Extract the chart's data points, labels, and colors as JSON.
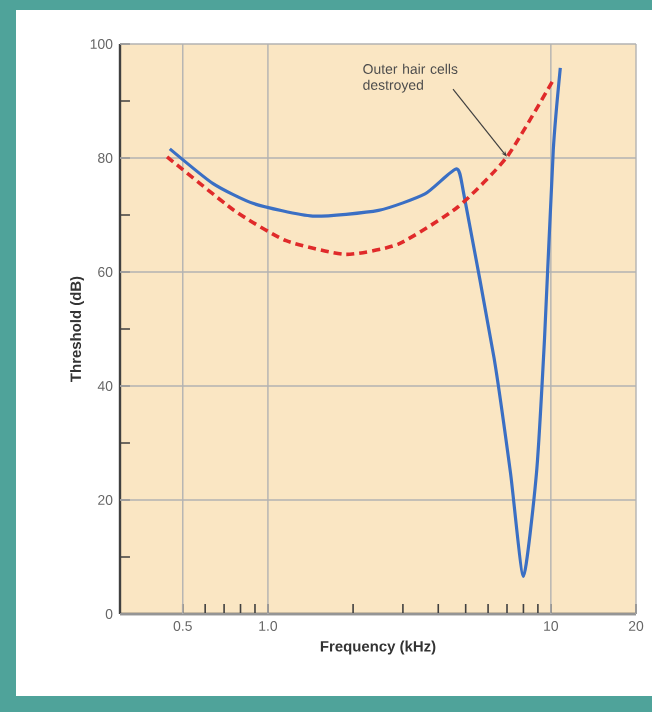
{
  "chart_data": {
    "type": "line",
    "xlabel": "Frequency (kHz)",
    "ylabel": "Threshold (dB)",
    "log": "x",
    "grid": true,
    "marker": "none",
    "xlim": [
      0.3,
      20
    ],
    "ylim": [
      0,
      100
    ],
    "xticks": [
      0.5,
      {
        "value": 0.6,
        "label": null
      },
      {
        "value": 0.7,
        "label": null
      },
      {
        "value": 0.8,
        "label": null
      },
      {
        "value": 0.9,
        "label": null
      },
      {
        "value": 1,
        "label": "1.0"
      },
      {
        "value": 2,
        "label": null
      },
      {
        "value": 3,
        "label": null
      },
      {
        "value": 4,
        "label": null
      },
      {
        "value": 5,
        "label": null
      },
      {
        "value": 6,
        "label": null
      },
      {
        "value": 7,
        "label": null
      },
      {
        "value": 8,
        "label": null
      },
      {
        "value": 9,
        "label": null
      },
      10,
      20
    ],
    "yticks": [
      0,
      {
        "value": 10,
        "label": null
      },
      20,
      {
        "value": 30,
        "label": null
      },
      40,
      {
        "value": 50,
        "label": null
      },
      60,
      {
        "value": 70,
        "label": null
      },
      80,
      {
        "value": 90,
        "label": null
      },
      100
    ],
    "series": [
      {
        "color": "#3a6fc4",
        "line_style": "solid",
        "x": [
          0.45,
          0.64,
          0.89,
          1.44,
          2.46,
          3.59,
          4.64,
          4.95,
          6.3,
          7.2,
          8.0,
          8.9,
          9.5,
          10.2,
          10.8
        ],
        "values": [
          81.6,
          75.5,
          72,
          69.8,
          70.8,
          73.7,
          78.1,
          73.1,
          44.9,
          24.8,
          6.6,
          24.8,
          48.4,
          81.4,
          95.8
        ]
      },
      {
        "color": "#e02a2a",
        "line_style": "dashed",
        "x": [
          0.44,
          0.76,
          1.16,
          1.88,
          2.89,
          4.69,
          7.0,
          10.2
        ],
        "values": [
          80.2,
          70.8,
          65.5,
          63.1,
          64.9,
          71.4,
          80.2,
          93.7
        ]
      }
    ],
    "annotations": [
      {
        "text": "Outer hair cells destroyed",
        "x": 7.0,
        "y": 80.2
      }
    ]
  }
}
